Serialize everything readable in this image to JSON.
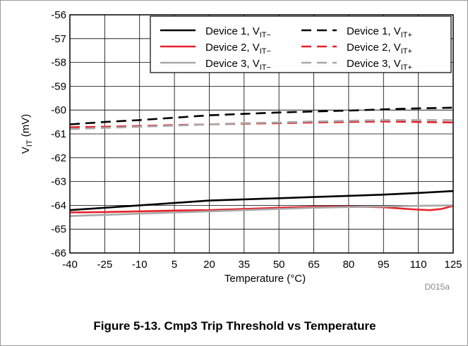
{
  "chart_data": {
    "type": "line",
    "xlabel": "Temperature",
    "xlabel_unit": "(°C)",
    "ylabel": "V",
    "ylabel_sub": "IT",
    "ylabel_unit": "(mV)",
    "xlim": [
      -40,
      125
    ],
    "ylim": [
      -66,
      -56
    ],
    "x_ticks": [
      -40,
      -25,
      -10,
      5,
      20,
      35,
      50,
      65,
      80,
      95,
      110,
      125
    ],
    "y_ticks": [
      -56,
      -57,
      -58,
      -59,
      -60,
      -61,
      -62,
      -63,
      -64,
      -65,
      -66
    ],
    "x_tick_labels": [
      "-40",
      "-25",
      "-10",
      "5",
      "20",
      "35",
      "50",
      "65",
      "80",
      "95",
      "110",
      "125"
    ],
    "y_tick_labels": [
      "-56",
      "-57",
      "-58",
      "-59",
      "-60",
      "-61",
      "-62",
      "-63",
      "-64",
      "-65",
      "-66"
    ],
    "grid": true,
    "legend_position": "top-right",
    "watermark": "D015a",
    "series": [
      {
        "name": "Device 1, V",
        "sub": "IT−",
        "color": "#000000",
        "dash": "solid",
        "x": [
          -40,
          -25,
          -10,
          5,
          20,
          35,
          50,
          65,
          80,
          95,
          110,
          125
        ],
        "y": [
          -64.2,
          -64.1,
          -64.0,
          -63.9,
          -63.8,
          -63.75,
          -63.7,
          -63.65,
          -63.6,
          -63.55,
          -63.48,
          -63.4
        ]
      },
      {
        "name": "Device 1, V",
        "sub": "IT+",
        "color": "#000000",
        "dash": "dashed",
        "x": [
          -40,
          -25,
          -10,
          5,
          20,
          35,
          50,
          65,
          80,
          95,
          110,
          125
        ],
        "y": [
          -60.6,
          -60.5,
          -60.42,
          -60.32,
          -60.22,
          -60.16,
          -60.1,
          -60.06,
          -60.02,
          -59.97,
          -59.93,
          -59.9
        ]
      },
      {
        "name": "Device 2, V",
        "sub": "IT−",
        "color": "#e8202a",
        "dash": "solid",
        "x": [
          -40,
          -25,
          -10,
          5,
          20,
          35,
          50,
          65,
          80,
          95,
          105,
          110,
          115,
          120,
          125
        ],
        "y": [
          -64.3,
          -64.28,
          -64.25,
          -64.22,
          -64.2,
          -64.15,
          -64.1,
          -64.06,
          -64.05,
          -64.08,
          -64.15,
          -64.18,
          -64.2,
          -64.15,
          -64.02
        ]
      },
      {
        "name": "Device 2, V",
        "sub": "IT+",
        "color": "#e8202a",
        "dash": "dashed",
        "x": [
          -40,
          -25,
          -10,
          5,
          20,
          35,
          50,
          65,
          80,
          95,
          110,
          125
        ],
        "y": [
          -60.72,
          -60.7,
          -60.67,
          -60.63,
          -60.6,
          -60.57,
          -60.55,
          -60.52,
          -60.5,
          -60.48,
          -60.5,
          -60.52
        ]
      },
      {
        "name": "Device 3, V",
        "sub": "IT−",
        "color": "#a8a8a8",
        "dash": "solid",
        "x": [
          -40,
          -25,
          -10,
          5,
          20,
          35,
          50,
          65,
          80,
          95,
          110,
          125
        ],
        "y": [
          -64.45,
          -64.4,
          -64.35,
          -64.3,
          -64.25,
          -64.2,
          -64.15,
          -64.1,
          -64.07,
          -64.05,
          -64.02,
          -64.0
        ]
      },
      {
        "name": "Device 3, V",
        "sub": "IT+",
        "color": "#a8a8a8",
        "dash": "dashed",
        "x": [
          -40,
          -25,
          -10,
          5,
          20,
          35,
          50,
          65,
          80,
          95,
          110,
          125
        ],
        "y": [
          -60.8,
          -60.75,
          -60.7,
          -60.65,
          -60.6,
          -60.55,
          -60.52,
          -60.48,
          -60.45,
          -60.42,
          -60.42,
          -60.42
        ]
      }
    ]
  },
  "caption": "Figure 5-13. Cmp3 Trip Threshold vs Temperature"
}
